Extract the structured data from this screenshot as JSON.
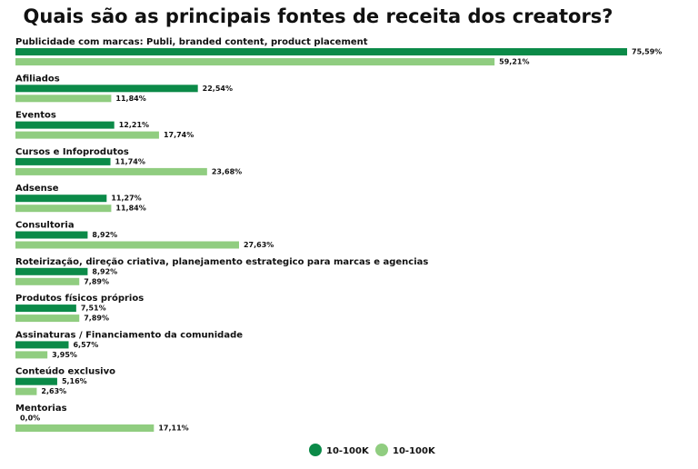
{
  "chart_data": {
    "type": "bar",
    "orientation": "horizontal",
    "title": "Quais são as principais fontes de receita dos creators?",
    "categories": [
      "Publicidade com marcas: Publi, branded content, product placement",
      "Afiliados",
      "Eventos",
      "Cursos e Infoprodutos",
      "Adsense",
      "Consultoria",
      "Roteirização, direção criativa, planejamento estrategico para marcas e agencias",
      "Produtos físicos próprios",
      "Assinaturas / Financiamento da comunidade",
      "Conteúdo exclusivo",
      "Mentorias"
    ],
    "series": [
      {
        "name": "10-100K",
        "color": "#0b8a48",
        "values": [
          75.59,
          22.54,
          12.21,
          11.74,
          11.27,
          8.92,
          8.92,
          7.51,
          6.57,
          5.16,
          0.0
        ],
        "value_labels": [
          "75,59%",
          "22,54%",
          "12,21%",
          "11,74%",
          "11,27%",
          "8,92%",
          "8,92%",
          "7,51%",
          "6,57%",
          "5,16%",
          "0,0%"
        ]
      },
      {
        "name": "10-100K",
        "color": "#90cd80",
        "values": [
          59.21,
          11.84,
          17.74,
          23.68,
          11.84,
          27.63,
          7.89,
          7.89,
          3.95,
          2.63,
          17.11
        ],
        "value_labels": [
          "59,21%",
          "11,84%",
          "17,74%",
          "23,68%",
          "11,84%",
          "27,63%",
          "7,89%",
          "7,89%",
          "3,95%",
          "2,63%",
          "17,11%"
        ]
      }
    ],
    "legend": "bottom"
  }
}
